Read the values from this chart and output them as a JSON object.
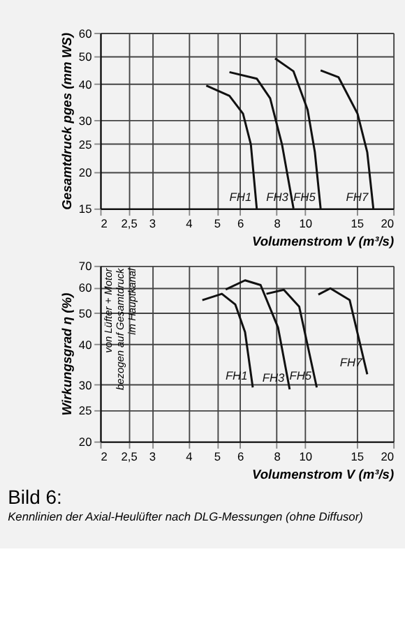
{
  "chart_data": [
    {
      "type": "line",
      "xlabel": "Volumenstrom V (m³/s)",
      "ylabel": "Gesamtdruck pges (mm WS)",
      "log": "xy",
      "grid": true,
      "legend": false,
      "xlim": [
        2,
        20
      ],
      "xticks": [
        2,
        {
          "value": 2.5,
          "label": "2,5"
        },
        3,
        4,
        5,
        6,
        8,
        10,
        15,
        20
      ],
      "ylim": [
        15,
        60
      ],
      "yticks": [
        15,
        20,
        25,
        30,
        40,
        50,
        60
      ],
      "series": [
        {
          "name": "FH1",
          "color": "#111111",
          "x": [
            4.6,
            5.52,
            6.14,
            6.53,
            6.84
          ],
          "values": [
            39.6,
            36.5,
            31.7,
            24.9,
            15
          ]
        },
        {
          "name": "FH3",
          "color": "#111111",
          "x": [
            5.52,
            6.84,
            7.6,
            8.34,
            9.13
          ],
          "values": [
            44,
            41.8,
            35.8,
            24.9,
            15
          ]
        },
        {
          "name": "FH5",
          "color": "#111111",
          "x": [
            7.9,
            9.13,
            10.2,
            10.8,
            11.3
          ],
          "values": [
            49,
            44.3,
            32.7,
            23.4,
            15
          ]
        },
        {
          "name": "FH7",
          "color": "#111111",
          "x": [
            11.3,
            13.0,
            15.1,
            16.3,
            17.1
          ],
          "values": [
            44.6,
            42.3,
            31.7,
            23.4,
            15
          ]
        }
      ]
    },
    {
      "type": "line",
      "xlabel": "Volumenstrom V (m³/s)",
      "ylabel": "Wirkungsgrad η (%)",
      "log": "xy",
      "grid": true,
      "legend": false,
      "title": "Bild 6:",
      "subtitle": "Kennlinien der Axial-Heulüfter nach DLG-Messungen (ohne Diffusor)",
      "annotations": [
        "von Lüfter + Motor bezogen auf Gesamtdruck im Hauptkanal"
      ],
      "xlim": [
        2,
        20
      ],
      "xticks": [
        2,
        {
          "value": 2.5,
          "label": "2,5"
        },
        3,
        4,
        5,
        6,
        8,
        10,
        15,
        20
      ],
      "ylim": [
        20,
        70
      ],
      "yticks": [
        20,
        25,
        30,
        40,
        50,
        60,
        70
      ],
      "series": [
        {
          "name": "FH1",
          "color": "#111111",
          "x": [
            4.46,
            5.2,
            5.78,
            6.24,
            6.63
          ],
          "values": [
            54.8,
            57.3,
            53.1,
            43.6,
            29.4
          ]
        },
        {
          "name": "FH3",
          "color": "#111111",
          "x": [
            5.36,
            6.24,
            7.05,
            8.09,
            8.86
          ],
          "values": [
            59.1,
            63.1,
            61,
            45,
            29
          ]
        },
        {
          "name": "FH5",
          "color": "#111111",
          "x": [
            7.38,
            8.46,
            9.55,
            10.96
          ],
          "values": [
            57.3,
            59,
            52.3,
            29.4
          ]
        },
        {
          "name": "FH7",
          "color": "#111111",
          "x": [
            11.1,
            12.2,
            14.2,
            16.3
          ],
          "values": [
            57,
            59.6,
            54.8,
            32.3
          ]
        }
      ]
    }
  ]
}
